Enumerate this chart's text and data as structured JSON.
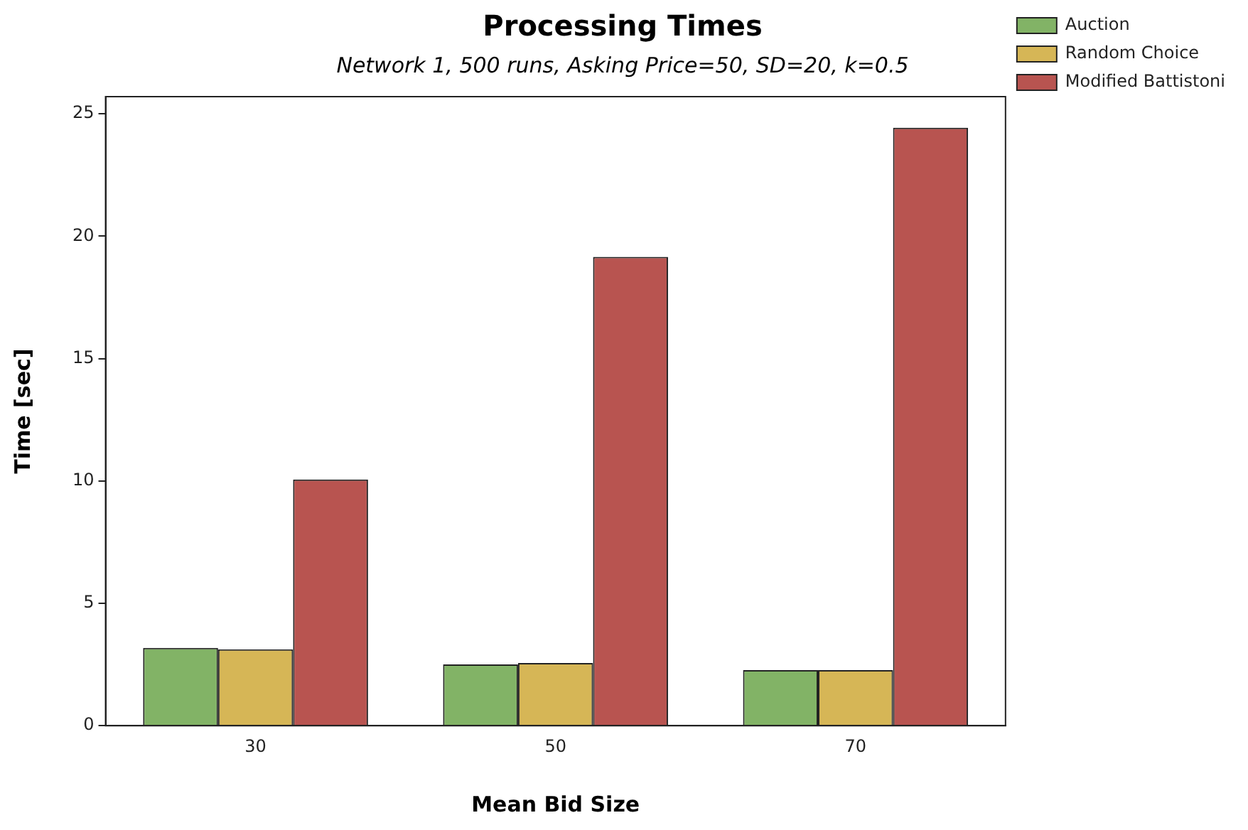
{
  "chart_data": {
    "type": "bar",
    "title": "Processing Times",
    "subtitle": "Network 1, 500 runs, Asking Price=50, SD=20, k=0.5",
    "xlabel": "Mean Bid Size",
    "ylabel": "Time [sec]",
    "categories": [
      "30",
      "50",
      "70"
    ],
    "series": [
      {
        "name": "Auction",
        "color": "#82b366",
        "values": [
          3.18,
          2.5,
          2.27
        ]
      },
      {
        "name": "Random Choice",
        "color": "#d6b656",
        "values": [
          3.12,
          2.56,
          2.27
        ]
      },
      {
        "name": "Modified Battistoni",
        "color": "#b85450",
        "values": [
          10.06,
          19.15,
          24.43
        ]
      }
    ],
    "ylim": [
      0,
      25.7
    ],
    "yticks": [
      0,
      5,
      10,
      15,
      20,
      25
    ],
    "grid": false,
    "legend": "top right"
  }
}
